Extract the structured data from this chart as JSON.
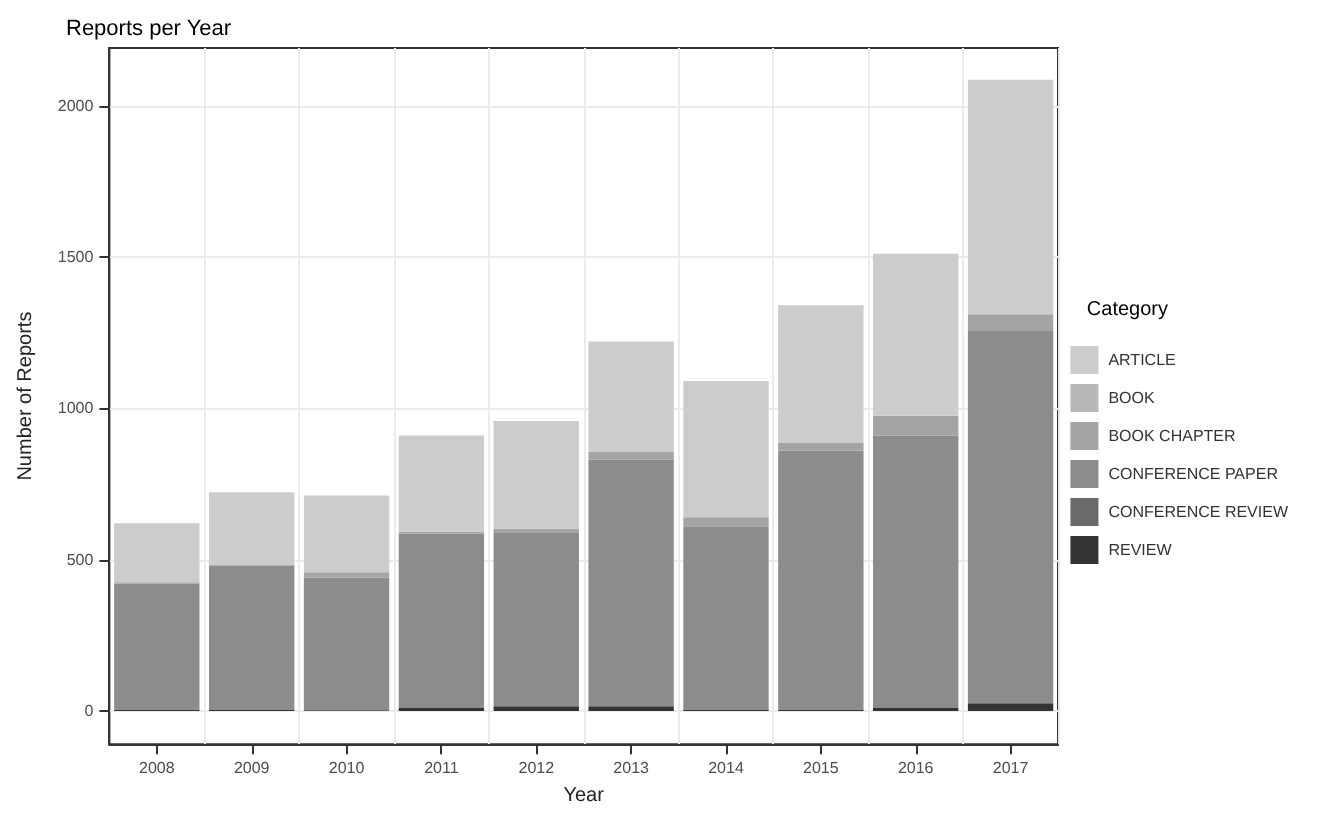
{
  "chart_data": {
    "type": "bar",
    "title": "Reports per Year",
    "xlabel": "Year",
    "ylabel": "Number of Reports",
    "legend_title": "Category",
    "categories": [
      "2008",
      "2009",
      "2010",
      "2011",
      "2012",
      "2013",
      "2014",
      "2015",
      "2016",
      "2017"
    ],
    "stacked": true,
    "series": [
      {
        "name": "REVIEW",
        "color": "#333333",
        "values": [
          5,
          3,
          2,
          10,
          15,
          15,
          5,
          5,
          10,
          25
        ]
      },
      {
        "name": "CONFERENCE REVIEW",
        "color": "#6a6a6a",
        "values": [
          0,
          0,
          0,
          0,
          0,
          0,
          0,
          0,
          0,
          0
        ]
      },
      {
        "name": "CONFERENCE PAPER",
        "color": "#8c8c8c",
        "values": [
          415,
          477,
          438,
          575,
          573,
          815,
          605,
          855,
          900,
          1230
        ]
      },
      {
        "name": "BOOK CHAPTER",
        "color": "#a4a4a4",
        "values": [
          5,
          2,
          18,
          7,
          14,
          25,
          30,
          25,
          65,
          55
        ]
      },
      {
        "name": "BOOK",
        "color": "#b8b8b8",
        "values": [
          0,
          0,
          0,
          0,
          0,
          0,
          0,
          0,
          0,
          0
        ]
      },
      {
        "name": "ARTICLE",
        "color": "#cccccc",
        "values": [
          195,
          240,
          254,
          318,
          356,
          365,
          450,
          455,
          535,
          775
        ]
      }
    ],
    "ylim": [
      -110,
      2190
    ],
    "yticks": [
      0,
      500,
      1000,
      1500,
      2000
    ],
    "grid": true,
    "legend": "right"
  }
}
